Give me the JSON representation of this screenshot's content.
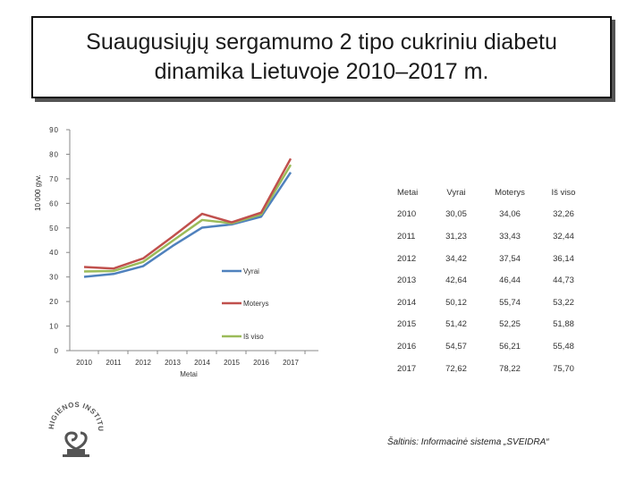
{
  "title": {
    "line1": "Suaugusiųjų sergamumo 2 tipo cukriniu diabetu",
    "line2": "dinamika Lietuvoje 2010–2017 m."
  },
  "chart_data": {
    "type": "line",
    "categories": [
      "2010",
      "2011",
      "2012",
      "2013",
      "2014",
      "2015",
      "2016",
      "2017"
    ],
    "series": [
      {
        "name": "Vyrai",
        "color": "#4f81bd",
        "values": [
          30.05,
          31.23,
          34.42,
          42.64,
          50.12,
          51.42,
          54.57,
          72.62
        ]
      },
      {
        "name": "Moterys",
        "color": "#c0504d",
        "values": [
          34.06,
          33.43,
          37.54,
          46.44,
          55.74,
          52.25,
          56.21,
          78.22
        ]
      },
      {
        "name": "Iš viso",
        "color": "#9bbb59",
        "values": [
          32.26,
          32.44,
          36.14,
          44.73,
          53.22,
          51.88,
          55.48,
          75.7
        ]
      }
    ],
    "ylim": [
      0,
      90
    ],
    "yticks": [
      "0",
      "10",
      "20",
      "30",
      "40",
      "50",
      "60",
      "70",
      "80",
      "90"
    ],
    "xlabel": "Metai",
    "ylabel": "10 000 gyv."
  },
  "table": {
    "headers": [
      "Metai",
      "Vyrai",
      "Moterys",
      "Iš viso"
    ],
    "rows": [
      [
        "2010",
        "30,05",
        "34,06",
        "32,26"
      ],
      [
        "2011",
        "31,23",
        "33,43",
        "32,44"
      ],
      [
        "2012",
        "34,42",
        "37,54",
        "36,14"
      ],
      [
        "2013",
        "42,64",
        "46,44",
        "44,73"
      ],
      [
        "2014",
        "50,12",
        "55,74",
        "53,22"
      ],
      [
        "2015",
        "51,42",
        "52,25",
        "51,88"
      ],
      [
        "2016",
        "54,57",
        "56,21",
        "55,48"
      ],
      [
        "2017",
        "72,62",
        "78,22",
        "75,70"
      ]
    ]
  },
  "source": "Šaltinis: Informacinė sistema „SVEIDRA“",
  "logo_text": "HIGIENOS INSTITUTAS"
}
